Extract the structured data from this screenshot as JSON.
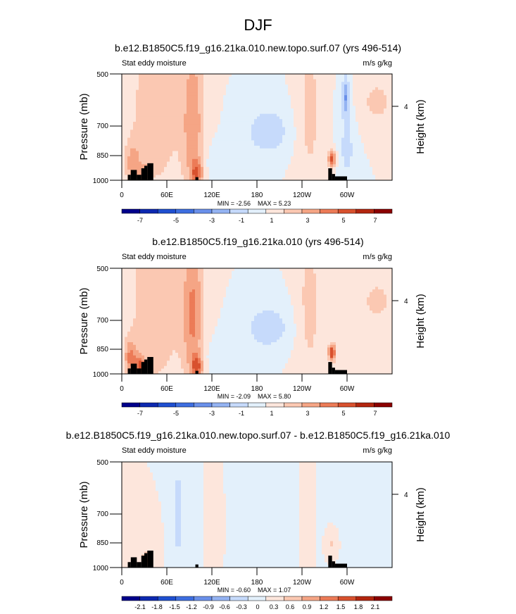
{
  "page_title": "DJF",
  "chart_data": [
    {
      "type": "heatmap",
      "title": "b.e12.B1850C5.f19_g16.21ka.010.new.topo.surf.07 (yrs 496-514)",
      "left_label": "Stat eddy moisture",
      "right_label": "m/s g/kg",
      "ylabel": "Pressure (mb)",
      "ylabel_right": "Height (km)",
      "yticks": [
        "500",
        "700",
        "850",
        "1000"
      ],
      "ytick_values": [
        500,
        700,
        850,
        1000
      ],
      "yticks_right": [
        "4"
      ],
      "xticks": [
        "0",
        "60E",
        "120E",
        "180",
        "120W",
        "60W"
      ],
      "xtick_values": [
        0,
        60,
        120,
        180,
        240,
        300
      ],
      "xlim": [
        0,
        360
      ],
      "ylim": [
        1000,
        500
      ],
      "min_label": "MIN = -2.56",
      "max_label": "MAX = 5.23",
      "colorbar_labels": [
        "-7",
        "-5",
        "-3",
        "-1",
        "1",
        "3",
        "5",
        "7"
      ],
      "levels": [
        -7,
        -6,
        -5,
        -4,
        -3,
        -2,
        -1,
        0,
        1,
        2,
        3,
        4,
        5,
        6,
        7
      ],
      "features": [
        {
          "lon": 45,
          "p": 650,
          "value": 1.5,
          "wlon": 40,
          "wp": 500
        },
        {
          "lon": 95,
          "p": 700,
          "value": 2.6,
          "wlon": 14,
          "wp": 360
        },
        {
          "lon": 100,
          "p": 950,
          "value": 3.2,
          "wlon": 8,
          "wp": 70
        },
        {
          "lon": 15,
          "p": 900,
          "value": 2.2,
          "wlon": 10,
          "wp": 120
        },
        {
          "lon": 30,
          "p": 960,
          "value": 3.0,
          "wlon": 6,
          "wp": 50
        },
        {
          "lon": 195,
          "p": 730,
          "value": -1.7,
          "wlon": 30,
          "wp": 120
        },
        {
          "lon": 250,
          "p": 650,
          "value": 1.3,
          "wlon": 18,
          "wp": 400
        },
        {
          "lon": 280,
          "p": 870,
          "value": 4.5,
          "wlon": 5,
          "wp": 50
        },
        {
          "lon": 298,
          "p": 580,
          "value": -2.6,
          "wlon": 5,
          "wp": 70
        },
        {
          "lon": 340,
          "p": 600,
          "value": 1.2,
          "wlon": 30,
          "wp": 120
        },
        {
          "lon": 140,
          "p": 900,
          "value": -0.9,
          "wlon": 30,
          "wp": 100
        },
        {
          "lon": 300,
          "p": 800,
          "value": -1.3,
          "wlon": 12,
          "wp": 250
        }
      ],
      "topography": [
        {
          "lon0": 8,
          "lon1": 12,
          "p": 965
        },
        {
          "lon0": 12,
          "lon1": 20,
          "p": 935
        },
        {
          "lon0": 20,
          "lon1": 26,
          "p": 965
        },
        {
          "lon0": 26,
          "lon1": 30,
          "p": 925
        },
        {
          "lon0": 30,
          "lon1": 34,
          "p": 910
        },
        {
          "lon0": 34,
          "lon1": 42,
          "p": 895
        },
        {
          "lon0": 98,
          "lon1": 102,
          "p": 980
        },
        {
          "lon0": 275,
          "lon1": 280,
          "p": 925
        },
        {
          "lon0": 280,
          "lon1": 284,
          "p": 960
        },
        {
          "lon0": 284,
          "lon1": 300,
          "p": 975
        }
      ]
    },
    {
      "type": "heatmap",
      "title": "b.e12.B1850C5.f19_g16.21ka.010 (yrs 496-514)",
      "left_label": "Stat eddy moisture",
      "right_label": "m/s g/kg",
      "ylabel": "Pressure (mb)",
      "ylabel_right": "Height (km)",
      "yticks": [
        "500",
        "700",
        "850",
        "1000"
      ],
      "ytick_values": [
        500,
        700,
        850,
        1000
      ],
      "yticks_right": [
        "4"
      ],
      "xticks": [
        "0",
        "60E",
        "120E",
        "180",
        "120W",
        "60W"
      ],
      "xtick_values": [
        0,
        60,
        120,
        180,
        240,
        300
      ],
      "xlim": [
        0,
        360
      ],
      "ylim": [
        1000,
        500
      ],
      "min_label": "MIN = -2.09",
      "max_label": "MAX = 5.80",
      "colorbar_labels": [
        "-7",
        "-5",
        "-3",
        "-1",
        "1",
        "3",
        "5",
        "7"
      ],
      "levels": [
        -7,
        -6,
        -5,
        -4,
        -3,
        -2,
        -1,
        0,
        1,
        2,
        3,
        4,
        5,
        6,
        7
      ],
      "features": [
        {
          "lon": 45,
          "p": 650,
          "value": 1.6,
          "wlon": 40,
          "wp": 500
        },
        {
          "lon": 95,
          "p": 680,
          "value": 3.0,
          "wlon": 14,
          "wp": 330
        },
        {
          "lon": 100,
          "p": 950,
          "value": 3.5,
          "wlon": 8,
          "wp": 70
        },
        {
          "lon": 12,
          "p": 900,
          "value": 3.0,
          "wlon": 8,
          "wp": 100
        },
        {
          "lon": 25,
          "p": 950,
          "value": 4.0,
          "wlon": 6,
          "wp": 60
        },
        {
          "lon": 195,
          "p": 740,
          "value": -1.7,
          "wlon": 30,
          "wp": 110
        },
        {
          "lon": 250,
          "p": 650,
          "value": 1.3,
          "wlon": 18,
          "wp": 400
        },
        {
          "lon": 280,
          "p": 870,
          "value": 5.0,
          "wlon": 5,
          "wp": 50
        },
        {
          "lon": 340,
          "p": 620,
          "value": 1.2,
          "wlon": 30,
          "wp": 120
        },
        {
          "lon": 140,
          "p": 900,
          "value": -0.9,
          "wlon": 30,
          "wp": 100
        }
      ],
      "topography": [
        {
          "lon0": 8,
          "lon1": 12,
          "p": 965
        },
        {
          "lon0": 12,
          "lon1": 20,
          "p": 935
        },
        {
          "lon0": 20,
          "lon1": 26,
          "p": 965
        },
        {
          "lon0": 26,
          "lon1": 30,
          "p": 925
        },
        {
          "lon0": 30,
          "lon1": 34,
          "p": 910
        },
        {
          "lon0": 34,
          "lon1": 42,
          "p": 895
        },
        {
          "lon0": 98,
          "lon1": 102,
          "p": 980
        },
        {
          "lon0": 275,
          "lon1": 280,
          "p": 925
        },
        {
          "lon0": 280,
          "lon1": 284,
          "p": 960
        },
        {
          "lon0": 284,
          "lon1": 300,
          "p": 975
        }
      ]
    },
    {
      "type": "heatmap",
      "title": "b.e12.B1850C5.f19_g16.21ka.010.new.topo.surf.07 - b.e12.B1850C5.f19_g16.21ka.010",
      "left_label": "Stat eddy moisture",
      "right_label": "m/s g/kg",
      "ylabel": "Pressure (mb)",
      "ylabel_right": "Height (km)",
      "yticks": [
        "500",
        "700",
        "850",
        "1000"
      ],
      "ytick_values": [
        500,
        700,
        850,
        1000
      ],
      "yticks_right": [
        "4"
      ],
      "xticks": [
        "0",
        "60E",
        "120E",
        "180",
        "120W",
        "60W"
      ],
      "xtick_values": [
        0,
        60,
        120,
        180,
        240,
        300
      ],
      "xlim": [
        0,
        360
      ],
      "ylim": [
        1000,
        500
      ],
      "min_label": "MIN = -0.60",
      "max_label": "MAX = 1.07",
      "colorbar_labels": [
        "-2.1",
        "-1.8",
        "-1.5",
        "-1.2",
        "-0.9",
        "-0.6",
        "-0.3",
        "0",
        "0.3",
        "0.6",
        "0.9",
        "1.2",
        "1.5",
        "1.8",
        "2.1"
      ],
      "levels": [
        -2.1,
        -1.8,
        -1.5,
        -1.2,
        -0.9,
        -0.6,
        -0.3,
        0,
        0.3,
        0.6,
        0.9,
        1.2,
        1.5,
        1.8,
        2.1
      ],
      "features": [
        {
          "lon": 75,
          "p": 720,
          "value": -0.45,
          "wlon": 8,
          "wp": 260
        },
        {
          "lon": 25,
          "p": 880,
          "value": 0.3,
          "wlon": 14,
          "wp": 140
        },
        {
          "lon": 35,
          "p": 960,
          "value": 0.8,
          "wlon": 5,
          "wp": 40
        },
        {
          "lon": 185,
          "p": 650,
          "value": -0.1,
          "wlon": 60,
          "wp": 400
        },
        {
          "lon": 245,
          "p": 700,
          "value": 0.15,
          "wlon": 10,
          "wp": 300
        },
        {
          "lon": 278,
          "p": 860,
          "value": 0.35,
          "wlon": 6,
          "wp": 60
        },
        {
          "lon": 125,
          "p": 700,
          "value": 0.15,
          "wlon": 12,
          "wp": 300
        }
      ],
      "topography": [
        {
          "lon0": 8,
          "lon1": 12,
          "p": 965
        },
        {
          "lon0": 12,
          "lon1": 20,
          "p": 935
        },
        {
          "lon0": 20,
          "lon1": 26,
          "p": 965
        },
        {
          "lon0": 26,
          "lon1": 30,
          "p": 925
        },
        {
          "lon0": 30,
          "lon1": 34,
          "p": 910
        },
        {
          "lon0": 34,
          "lon1": 42,
          "p": 895
        },
        {
          "lon0": 98,
          "lon1": 102,
          "p": 980
        },
        {
          "lon0": 275,
          "lon1": 280,
          "p": 925
        },
        {
          "lon0": 280,
          "lon1": 284,
          "p": 960
        },
        {
          "lon0": 284,
          "lon1": 300,
          "p": 975
        }
      ]
    }
  ],
  "palette": [
    "#00008b",
    "#0d29b0",
    "#1f4fd0",
    "#3d6ee0",
    "#6a90ea",
    "#94b3f2",
    "#c6dafb",
    "#e3f0fb",
    "#fde6dc",
    "#fbc8b2",
    "#f5a585",
    "#ec7b57",
    "#d8512e",
    "#b3260f",
    "#8b0000"
  ]
}
